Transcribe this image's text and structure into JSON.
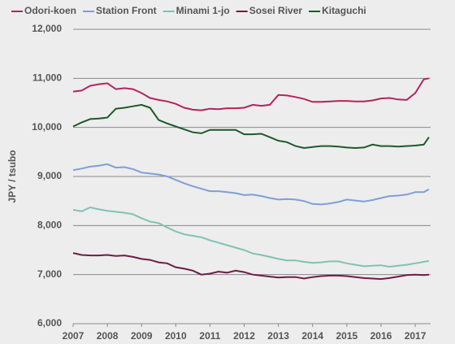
{
  "chart_data": {
    "type": "line",
    "y_label": "JPY / tsubo",
    "x": [
      2007,
      2007.25,
      2007.5,
      2007.75,
      2008,
      2008.25,
      2008.5,
      2008.75,
      2009,
      2009.25,
      2009.5,
      2009.75,
      2010,
      2010.25,
      2010.5,
      2010.75,
      2011,
      2011.25,
      2011.5,
      2011.75,
      2012,
      2012.25,
      2012.5,
      2012.75,
      2013,
      2013.25,
      2013.5,
      2013.75,
      2014,
      2014.25,
      2014.5,
      2014.75,
      2015,
      2015.25,
      2015.5,
      2015.75,
      2016,
      2016.25,
      2016.5,
      2016.75,
      2017,
      2017.25,
      2017.4
    ],
    "series": [
      {
        "name": "Odori-koen",
        "color": "#b3255f",
        "values": [
          10730,
          10750,
          10850,
          10880,
          10900,
          10780,
          10800,
          10780,
          10700,
          10600,
          10560,
          10530,
          10480,
          10400,
          10360,
          10350,
          10380,
          10370,
          10390,
          10390,
          10400,
          10460,
          10440,
          10460,
          10660,
          10650,
          10620,
          10580,
          10520,
          10520,
          10530,
          10540,
          10540,
          10530,
          10530,
          10550,
          10590,
          10600,
          10570,
          10560,
          10700,
          10980,
          11000
        ]
      },
      {
        "name": "Station Front",
        "color": "#7f9fd6",
        "values": [
          9130,
          9160,
          9200,
          9220,
          9250,
          9180,
          9190,
          9150,
          9080,
          9060,
          9040,
          9000,
          8930,
          8860,
          8800,
          8750,
          8700,
          8700,
          8680,
          8660,
          8620,
          8630,
          8600,
          8560,
          8530,
          8540,
          8530,
          8500,
          8440,
          8430,
          8450,
          8480,
          8530,
          8510,
          8490,
          8520,
          8560,
          8600,
          8610,
          8630,
          8680,
          8680,
          8740
        ]
      },
      {
        "name": "Minami 1-jo",
        "color": "#80c2b2",
        "values": [
          8320,
          8290,
          8370,
          8330,
          8300,
          8280,
          8260,
          8230,
          8150,
          8080,
          8050,
          7960,
          7880,
          7820,
          7790,
          7760,
          7700,
          7650,
          7600,
          7550,
          7500,
          7430,
          7400,
          7360,
          7320,
          7290,
          7290,
          7260,
          7240,
          7250,
          7270,
          7270,
          7230,
          7200,
          7170,
          7180,
          7190,
          7160,
          7180,
          7200,
          7230,
          7260,
          7280
        ]
      },
      {
        "name": "Sosei River",
        "color": "#6b1f47",
        "values": [
          7440,
          7400,
          7390,
          7390,
          7400,
          7380,
          7390,
          7360,
          7320,
          7300,
          7250,
          7230,
          7150,
          7120,
          7080,
          7000,
          7020,
          7060,
          7040,
          7080,
          7050,
          7000,
          6980,
          6960,
          6940,
          6950,
          6950,
          6920,
          6950,
          6970,
          6980,
          6980,
          6970,
          6950,
          6930,
          6920,
          6910,
          6930,
          6960,
          6990,
          7000,
          6990,
          7000
        ]
      },
      {
        "name": "Kitaguchi",
        "color": "#1d5a2c",
        "values": [
          10020,
          10100,
          10170,
          10180,
          10200,
          10380,
          10400,
          10430,
          10460,
          10400,
          10150,
          10080,
          10020,
          9960,
          9900,
          9880,
          9950,
          9950,
          9950,
          9950,
          9860,
          9860,
          9870,
          9800,
          9730,
          9700,
          9620,
          9580,
          9600,
          9620,
          9620,
          9610,
          9590,
          9580,
          9590,
          9650,
          9620,
          9620,
          9610,
          9620,
          9630,
          9650,
          9800
        ]
      }
    ],
    "xlim": [
      2007,
      2017.45
    ],
    "xticks": [
      2007,
      2008,
      2009,
      2010,
      2011,
      2012,
      2013,
      2014,
      2015,
      2016,
      2017
    ],
    "ylim": [
      6000,
      12000
    ],
    "yticks": [
      {
        "value": 6000,
        "label": "6,000"
      },
      {
        "value": 7000,
        "label": "7,000"
      },
      {
        "value": 8000,
        "label": "8,000"
      },
      {
        "value": 9000,
        "label": "9,000"
      },
      {
        "value": 10000,
        "label": "10,000"
      },
      {
        "value": 11000,
        "label": "11,000"
      },
      {
        "value": 12000,
        "label": "12,000"
      }
    ],
    "grid": true,
    "legend": "top"
  }
}
